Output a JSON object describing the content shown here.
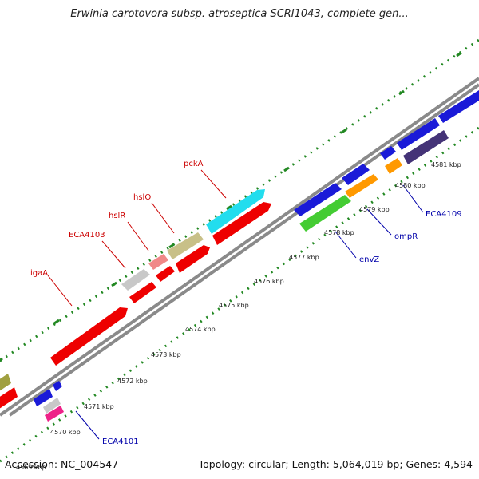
{
  "title": "Erwinia carotovora subsp. atroseptica SCRI1043, complete gen...",
  "footer": {
    "accession": "Accession: NC_004547",
    "topology": "Topology: circular; Length: 5,064,019 bp; Genes: 4,594"
  },
  "ticks": [
    "4570 kbp",
    "4571 kbp",
    "4572 kbp",
    "4573 kbp",
    "4574 kbp",
    "4575 kbp",
    "4576 kbp",
    "4577 kbp",
    "4578 kbp",
    "4579 kbp",
    "4580 kbp",
    "4581 kbp"
  ],
  "tick_partial": "4569 kbp",
  "genes_top_labels": [
    {
      "name": "igaA",
      "color": "#cc0000"
    },
    {
      "name": "ECA4103",
      "color": "#cc0000"
    },
    {
      "name": "hslR",
      "color": "#cc0000"
    },
    {
      "name": "hslO",
      "color": "#cc0000"
    },
    {
      "name": "pckA",
      "color": "#cc0000"
    }
  ],
  "genes_bottom_labels": [
    {
      "name": "ECA4101",
      "color": "#0000aa"
    },
    {
      "name": "envZ",
      "color": "#0000aa"
    },
    {
      "name": "ompR",
      "color": "#0000aa"
    },
    {
      "name": "ECA4109",
      "color": "#0000aa"
    }
  ],
  "colors": {
    "red": "#ee0000",
    "blue": "#1a1ad8",
    "cyan": "#22ddee",
    "olive": "#c8c088",
    "pink_light": "#f08888",
    "gray_gene": "#c8c8c8",
    "green": "#44cc33",
    "orange": "#ff9900",
    "navy": "#443377",
    "magenta": "#ee2288",
    "backbone": "#8a8a8a",
    "dots": "#228822"
  }
}
